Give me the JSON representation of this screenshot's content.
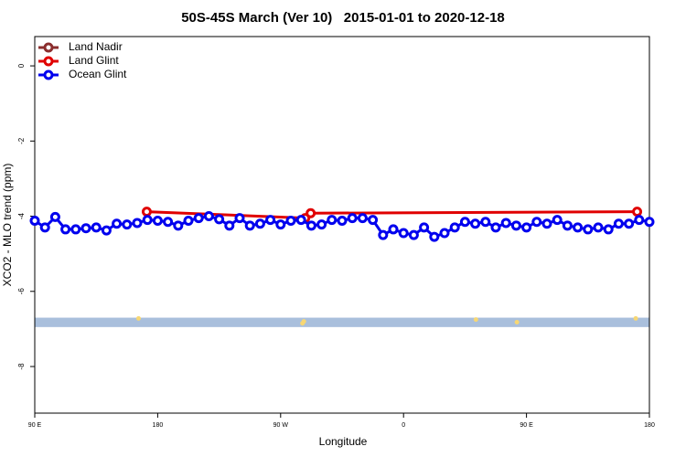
{
  "chart_data": {
    "type": "line",
    "title": "50S-45S March (Ver 10)   2015-01-01 to 2020-12-18",
    "x_label": "Longitude",
    "y_label": "XCO2 - MLO trend (ppm)",
    "xlim": [
      90,
      540
    ],
    "ylim": [
      -9.24,
      0.78
    ],
    "xticks": [
      {
        "value": 90,
        "label": "90 E"
      },
      {
        "value": 180,
        "label": "180"
      },
      {
        "value": 270,
        "label": "90 W"
      },
      {
        "value": 360,
        "label": "0"
      },
      {
        "value": 450,
        "label": "90 E"
      },
      {
        "value": 540,
        "label": "180"
      }
    ],
    "yticks": [
      0,
      -2,
      -4,
      -6,
      -8
    ],
    "legend": "top-left",
    "series": [
      {
        "name": "Land Nadir",
        "color": "#8b2e2e",
        "x": [],
        "values": []
      },
      {
        "name": "Land Glint",
        "color": "#e00000",
        "x": [
          172,
          288,
          292,
          531
        ],
        "values": [
          -3.88,
          -4.05,
          -3.92,
          -3.88
        ]
      },
      {
        "name": "Ocean Glint",
        "color": "#0000ee",
        "x": [
          90,
          97.5,
          105,
          112.5,
          120,
          127.5,
          135,
          142.5,
          150,
          157.5,
          165,
          172.5,
          180,
          187.5,
          195,
          202.5,
          210,
          217.5,
          225,
          232.5,
          240,
          247.5,
          255,
          262.5,
          270,
          277.5,
          285,
          292.5,
          300,
          307.5,
          315,
          322.5,
          330,
          337.5,
          345,
          352.5,
          360,
          367.5,
          375,
          382.5,
          390,
          397.5,
          405,
          412.5,
          420,
          427.5,
          435,
          442.5,
          450,
          457.5,
          465,
          472.5,
          480,
          487.5,
          495,
          502.5,
          510,
          517.5,
          525,
          532.5,
          540
        ],
        "values": [
          -4.12,
          -4.3,
          -4.02,
          -4.35,
          -4.35,
          -4.32,
          -4.3,
          -4.38,
          -4.2,
          -4.22,
          -4.18,
          -4.1,
          -4.12,
          -4.15,
          -4.25,
          -4.12,
          -4.05,
          -4.0,
          -4.08,
          -4.25,
          -4.05,
          -4.25,
          -4.2,
          -4.1,
          -4.22,
          -4.12,
          -4.1,
          -4.25,
          -4.22,
          -4.1,
          -4.12,
          -4.05,
          -4.05,
          -4.1,
          -4.5,
          -4.35,
          -4.45,
          -4.5,
          -4.3,
          -4.55,
          -4.45,
          -4.3,
          -4.15,
          -4.2,
          -4.15,
          -4.3,
          -4.18,
          -4.25,
          -4.3,
          -4.15,
          -4.2,
          -4.1,
          -4.25,
          -4.3,
          -4.35,
          -4.3,
          -4.35,
          -4.2,
          -4.2,
          -4.1,
          -4.15
        ]
      }
    ],
    "band": {
      "range": [
        -6.95,
        -6.7
      ],
      "color": "#a9bfdc"
    },
    "markers": {
      "color": "#f7d774",
      "x": [
        166,
        286,
        287,
        413,
        443,
        530
      ],
      "values": [
        -6.72,
        -6.85,
        -6.8,
        -6.75,
        -6.82,
        -6.72
      ]
    }
  }
}
